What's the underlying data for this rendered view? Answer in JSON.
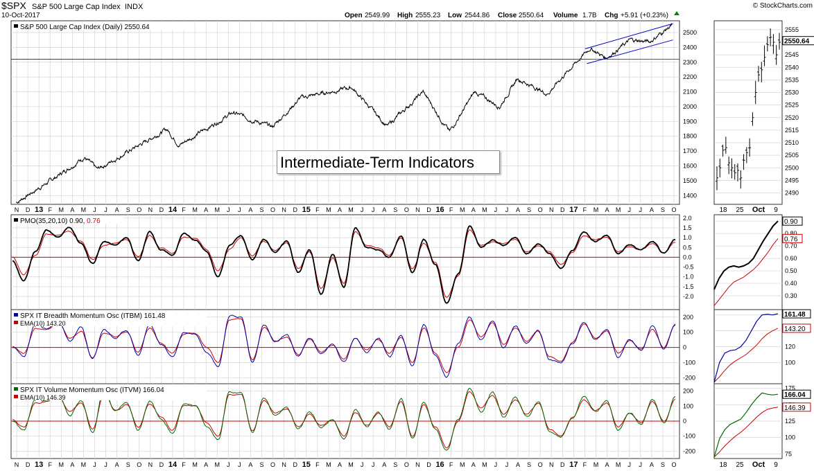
{
  "header": {
    "symbol": "$SPX",
    "name": "S&P 500 Large Cap Index",
    "exchange": "INDX",
    "date": "10-Oct-2017",
    "open_label": "Open",
    "open": "2549.99",
    "high_label": "High",
    "high": "2555.23",
    "low_label": "Low",
    "low": "2544.86",
    "close_label": "Close",
    "close": "2550.64",
    "volume_label": "Volume",
    "volume": "1.7B",
    "chg_label": "Chg",
    "chg": "+5.91 (+0.23%)",
    "watermark": "© StockCharts.com"
  },
  "annotation": "Intermediate-Term Indicators",
  "x_axis": {
    "labels": [
      "N",
      "D",
      "13",
      "F",
      "M",
      "A",
      "M",
      "J",
      "J",
      "A",
      "S",
      "O",
      "N",
      "D",
      "14",
      "F",
      "M",
      "A",
      "M",
      "J",
      "J",
      "A",
      "S",
      "O",
      "N",
      "D",
      "15",
      "F",
      "M",
      "A",
      "M",
      "J",
      "J",
      "A",
      "S",
      "O",
      "N",
      "D",
      "16",
      "F",
      "M",
      "A",
      "M",
      "J",
      "J",
      "A",
      "S",
      "O",
      "N",
      "D",
      "17",
      "F",
      "M",
      "A",
      "M",
      "J",
      "J",
      "A",
      "S",
      "O"
    ],
    "bold": [
      "13",
      "14",
      "15",
      "16",
      "17"
    ],
    "detail_labels": [
      "18",
      "25",
      "Oct",
      "9"
    ]
  },
  "colors": {
    "price": "#000000",
    "trend": "#0000cc",
    "support_red": "#cc0000",
    "support_green": "#009900",
    "pmo": "#000000",
    "signal": "#cc0000",
    "itbm": "#0000aa",
    "itvm": "#006600",
    "grid": "#d4d4d4"
  },
  "chart_data": [
    {
      "type": "line",
      "title": "S&P 500 Large Cap Index (Daily) 2550.64",
      "ylim": [
        1350,
        2570
      ],
      "yticks": [
        1400,
        1500,
        1600,
        1700,
        1800,
        1900,
        2000,
        2100,
        2200,
        2300,
        2400,
        2500
      ],
      "x_range": [
        "2012-11",
        "2017-10"
      ],
      "series": [
        {
          "name": "S&P 500 Large Cap Index (Daily)",
          "x": [
            "2012-11-15",
            "2013-03-01",
            "2013-05-20",
            "2013-06-24",
            "2013-12-31",
            "2014-02-03",
            "2014-06-30",
            "2014-10-15",
            "2014-12-31",
            "2015-05-20",
            "2015-08-25",
            "2015-12-01",
            "2016-02-11",
            "2016-04-20",
            "2016-06-27",
            "2016-08-15",
            "2016-11-04",
            "2016-12-30",
            "2017-03-01",
            "2017-04-13",
            "2017-06-19",
            "2017-08-11",
            "2017-10-10"
          ],
          "y": [
            1353,
            1520,
            1660,
            1575,
            1848,
            1740,
            1960,
            1862,
            2059,
            2130,
            1867,
            2100,
            1829,
            2100,
            2000,
            2190,
            2085,
            2240,
            2395,
            2328,
            2450,
            2438,
            2550
          ]
        }
      ],
      "lines": [
        {
          "name": "support-red",
          "y": 2320
        },
        {
          "name": "support-green",
          "y": 2320,
          "from": "2017-03-01"
        },
        {
          "name": "channel-upper",
          "from": [
            "2017-02-15",
            2390
          ],
          "to": [
            "2017-10-13",
            2560
          ]
        },
        {
          "name": "channel-lower",
          "from": [
            "2017-02-20",
            2290
          ],
          "to": [
            "2017-10-13",
            2450
          ]
        }
      ]
    },
    {
      "type": "line",
      "title": "PMO(35,20,10) 0.90, 0.76",
      "ylim": [
        -2.6,
        2.1
      ],
      "yticks": [
        "2.0",
        "1.5",
        "1.0",
        "0.5",
        "0.0",
        "-0.5",
        "-1.0",
        "-1.5",
        "-2.0"
      ],
      "series": [
        {
          "name": "PMO",
          "value": "0.90"
        },
        {
          "name": "Signal",
          "value": "0.76"
        }
      ],
      "pmo": [
        -0.2,
        -1.2,
        0.3,
        1.4,
        1.0,
        1.5,
        0.7,
        -0.3,
        0.8,
        0.6,
        1.0,
        -0.2,
        1.3,
        0.4,
        0.1,
        1.2,
        0.9,
        0.3,
        -1.0,
        0.6,
        1.1,
        -0.1,
        0.9,
        0.3,
        0.8,
        -0.8,
        0.4,
        -1.9,
        0.2,
        -1.5,
        1.5,
        0.5,
        0.4,
        0.0,
        1.1,
        -0.8,
        0.9,
        -0.4,
        -2.4,
        -0.9,
        1.6,
        0.5,
        0.9,
        0.6,
        1.0,
        0.2,
        0.7,
        0.2,
        -0.6,
        0.3,
        1.3,
        0.8,
        1.1,
        0.2,
        0.6,
        0.4,
        0.8,
        0.2,
        0.9
      ],
      "signal": [
        0.0,
        -0.9,
        0.1,
        1.2,
        1.1,
        1.3,
        0.8,
        -0.1,
        0.6,
        0.7,
        0.9,
        0.0,
        1.1,
        0.5,
        0.2,
        1.0,
        1.0,
        0.4,
        -0.7,
        0.4,
        1.0,
        0.1,
        0.8,
        0.4,
        0.7,
        -0.6,
        0.3,
        -1.6,
        0.0,
        -1.3,
        1.3,
        0.6,
        0.5,
        0.1,
        1.0,
        -0.6,
        0.7,
        -0.3,
        -2.1,
        -1.0,
        1.4,
        0.6,
        0.8,
        0.7,
        0.9,
        0.3,
        0.6,
        0.3,
        -0.4,
        0.2,
        1.1,
        0.9,
        1.0,
        0.3,
        0.5,
        0.4,
        0.7,
        0.2,
        0.76
      ]
    },
    {
      "type": "line",
      "title": "SPX IT Breadth Momentum Osc (ITBM) 161.48",
      "ylim": [
        -230,
        240
      ],
      "yticks": [
        200,
        100,
        0,
        -100,
        -200
      ],
      "series": [
        {
          "name": "SPX IT Breadth Momentum Osc (ITBM)",
          "value": "161.48"
        },
        {
          "name": "EMA(10)",
          "value": "143.20"
        }
      ],
      "itbm": [
        0,
        -60,
        150,
        120,
        180,
        40,
        130,
        -80,
        120,
        60,
        110,
        -50,
        150,
        20,
        -60,
        100,
        90,
        -20,
        -120,
        210,
        200,
        -100,
        150,
        30,
        80,
        -60,
        60,
        -40,
        20,
        -100,
        70,
        -30,
        60,
        -60,
        80,
        -120,
        150,
        -50,
        -190,
        20,
        200,
        50,
        180,
        0,
        140,
        30,
        120,
        -80,
        -100,
        30,
        170,
        50,
        120,
        -60,
        50,
        -20,
        140,
        -10,
        161
      ],
      "ema": [
        10,
        -40,
        120,
        120,
        160,
        60,
        110,
        -60,
        100,
        70,
        100,
        -30,
        130,
        30,
        -40,
        90,
        90,
        0,
        -100,
        180,
        190,
        -80,
        130,
        40,
        70,
        -50,
        50,
        -30,
        20,
        -80,
        60,
        -20,
        50,
        -40,
        70,
        -100,
        130,
        -40,
        -170,
        0,
        180,
        70,
        160,
        20,
        130,
        40,
        110,
        -60,
        -90,
        30,
        150,
        60,
        110,
        -40,
        40,
        -10,
        120,
        0,
        143
      ]
    },
    {
      "type": "line",
      "title": "SPX IT Volume Momentum Osc (ITVM) 166.04",
      "ylim": [
        -240,
        240
      ],
      "yticks": [
        200,
        100,
        0,
        -100,
        -200
      ],
      "series": [
        {
          "name": "SPX IT Volume Momentum Osc (ITVM)",
          "value": "166.04"
        },
        {
          "name": "EMA(10)",
          "value": "146.39"
        }
      ],
      "itvm": [
        0,
        -60,
        150,
        130,
        180,
        40,
        140,
        -70,
        210,
        60,
        120,
        -60,
        140,
        20,
        -80,
        120,
        100,
        -30,
        -120,
        200,
        190,
        -80,
        160,
        40,
        90,
        -50,
        60,
        -40,
        10,
        -120,
        70,
        -40,
        60,
        -60,
        150,
        -120,
        130,
        -50,
        -200,
        10,
        220,
        60,
        190,
        20,
        150,
        30,
        130,
        -70,
        -110,
        20,
        160,
        60,
        130,
        -60,
        60,
        -20,
        150,
        -10,
        166
      ],
      "ema": [
        10,
        -40,
        120,
        130,
        160,
        60,
        120,
        -50,
        180,
        70,
        110,
        -40,
        120,
        30,
        -60,
        100,
        100,
        -10,
        -100,
        180,
        180,
        -60,
        140,
        50,
        80,
        -40,
        50,
        -30,
        10,
        -100,
        60,
        -30,
        50,
        -40,
        130,
        -100,
        110,
        -40,
        -180,
        0,
        200,
        80,
        170,
        40,
        140,
        40,
        120,
        -50,
        -100,
        20,
        140,
        70,
        120,
        -40,
        50,
        -10,
        130,
        0,
        146
      ]
    },
    {
      "type": "line",
      "title": "detail-price",
      "ylim": [
        2486,
        2558
      ],
      "yticks": [
        2490,
        2495,
        2500,
        2505,
        2510,
        2515,
        2520,
        2525,
        2530,
        2535,
        2540,
        2545,
        2550,
        2555
      ],
      "last_value": "2550.64",
      "series": [
        {
          "name": "close",
          "values": [
            2496,
            2500,
            2507,
            2508,
            2502,
            2500,
            2498,
            2499,
            2496,
            2503,
            2506,
            2508,
            2520,
            2530,
            2537,
            2539,
            2544,
            2549,
            2552,
            2550,
            2545,
            2550
          ]
        }
      ]
    },
    {
      "type": "line",
      "title": "detail-pmo",
      "ylim": [
        0.2,
        0.94
      ],
      "yticks": [
        "0.90",
        "0.80",
        "0.70",
        "0.60",
        "0.50",
        "0.40",
        "0.30"
      ],
      "last_values": [
        "0.90",
        "0.76"
      ],
      "series": [
        {
          "name": "PMO",
          "values": [
            0.35,
            0.44,
            0.5,
            0.53,
            0.54,
            0.53,
            0.54,
            0.56,
            0.6,
            0.67,
            0.74,
            0.8,
            0.86,
            0.9
          ]
        },
        {
          "name": "Signal",
          "values": [
            0.22,
            0.27,
            0.32,
            0.37,
            0.41,
            0.43,
            0.45,
            0.48,
            0.51,
            0.55,
            0.6,
            0.65,
            0.71,
            0.76
          ]
        }
      ]
    },
    {
      "type": "line",
      "title": "detail-itbm",
      "ylim": [
        75,
        165
      ],
      "yticks": [
        160,
        140,
        120,
        100
      ],
      "last_values": [
        "161.48",
        "143.20"
      ],
      "series": [
        {
          "name": "ITBM",
          "values": [
            75,
            100,
            112,
            115,
            116,
            120,
            128,
            140,
            152,
            160,
            161,
            160,
            161.48
          ]
        },
        {
          "name": "EMA(10)",
          "values": [
            75,
            82,
            90,
            97,
            102,
            106,
            110,
            116,
            122,
            130,
            136,
            140,
            143.2
          ]
        }
      ]
    },
    {
      "type": "line",
      "title": "detail-itvm",
      "ylim": [
        70,
        180
      ],
      "yticks": [
        175,
        150,
        125,
        100,
        75
      ],
      "last_values": [
        "166.04",
        "146.39"
      ],
      "series": [
        {
          "name": "ITVM",
          "values": [
            70,
            98,
            112,
            120,
            124,
            128,
            138,
            150,
            160,
            168,
            166,
            165,
            166.04
          ]
        },
        {
          "name": "EMA(10)",
          "values": [
            70,
            78,
            87,
            95,
            102,
            108,
            115,
            123,
            131,
            138,
            143,
            145,
            146.39
          ]
        }
      ]
    }
  ]
}
